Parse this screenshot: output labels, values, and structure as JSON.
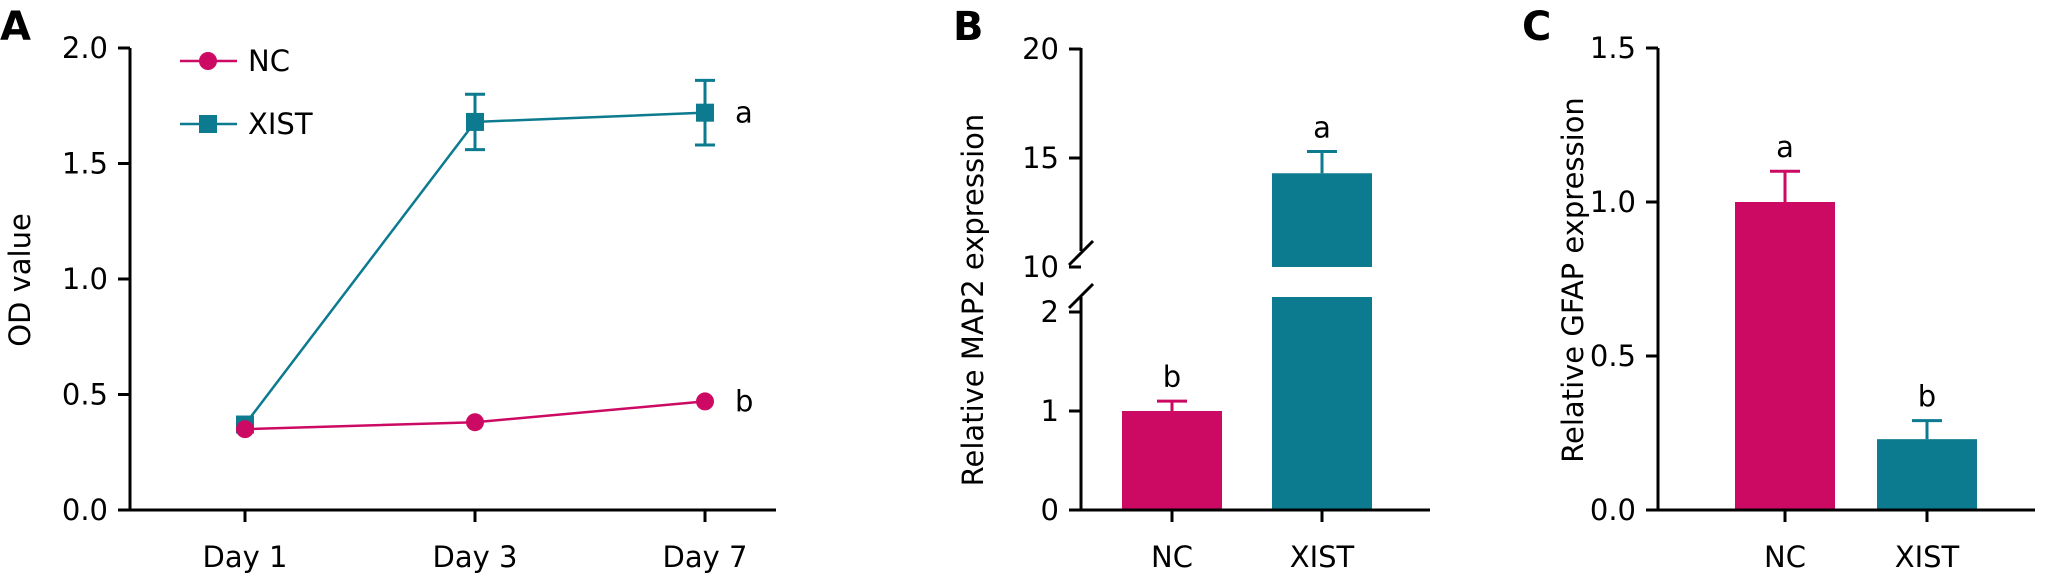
{
  "colors": {
    "nc": "#cc0a63",
    "xist": "#0c7a8f",
    "axis": "#000000"
  },
  "chart_data": [
    {
      "panel": "A",
      "type": "line",
      "ylabel": "OD value",
      "ylim": [
        0,
        2.0
      ],
      "yticks": [
        "0.0",
        "0.5",
        "1.0",
        "1.5",
        "2.0"
      ],
      "categories": [
        "Day 1",
        "Day 3",
        "Day 7"
      ],
      "legend_position": "top-left",
      "series": [
        {
          "name": "NC",
          "marker": "circle",
          "values": [
            0.35,
            0.38,
            0.47
          ],
          "errors": [
            0,
            0,
            0
          ]
        },
        {
          "name": "XIST",
          "marker": "square",
          "values": [
            0.37,
            1.68,
            1.72
          ],
          "errors": [
            0,
            0.12,
            0.14
          ]
        }
      ],
      "annotations": [
        {
          "series": "XIST",
          "index": 2,
          "text": "a"
        },
        {
          "series": "NC",
          "index": 2,
          "text": "b"
        }
      ]
    },
    {
      "panel": "B",
      "type": "bar",
      "ylabel": "Relative MAP2 expression",
      "axis_break": {
        "lower": [
          0,
          2
        ],
        "upper": [
          10,
          20
        ]
      },
      "yticks_lower": [
        "0",
        "1",
        "2"
      ],
      "yticks_upper": [
        "10",
        "15",
        "20"
      ],
      "categories": [
        "NC",
        "XIST"
      ],
      "values": [
        1.0,
        14.3
      ],
      "errors": [
        0.1,
        1.0
      ],
      "labels": [
        "b",
        "a"
      ]
    },
    {
      "panel": "C",
      "type": "bar",
      "ylabel": "Relative GFAP expression",
      "ylim": [
        0,
        1.5
      ],
      "yticks": [
        "0.0",
        "0.5",
        "1.0",
        "1.5"
      ],
      "categories": [
        "NC",
        "XIST"
      ],
      "values": [
        1.0,
        0.23
      ],
      "errors": [
        0.1,
        0.06
      ],
      "labels": [
        "a",
        "b"
      ]
    }
  ]
}
